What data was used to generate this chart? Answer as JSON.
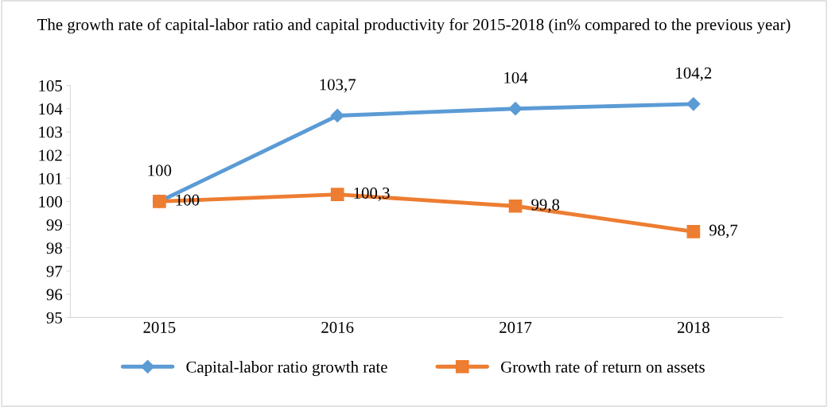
{
  "chart_data": {
    "type": "line",
    "title": "The growth rate of capital-labor ratio and capital productivity for 2015-2018 (in% compared to the previous year)",
    "categories": [
      "2015",
      "2016",
      "2017",
      "2018"
    ],
    "series": [
      {
        "name": "Capital-labor ratio growth rate",
        "color": "#5b9bd5",
        "marker": "diamond",
        "values": [
          100,
          103.7,
          104,
          104.2
        ],
        "value_labels": [
          "100",
          "103,7",
          "104",
          "104,2"
        ]
      },
      {
        "name": "Growth rate of return on assets",
        "color": "#ed7d31",
        "marker": "square",
        "values": [
          100,
          100.3,
          99.8,
          98.7
        ],
        "value_labels": [
          "100",
          "100,3",
          "99,8",
          "98,7"
        ]
      }
    ],
    "ylim": [
      95,
      105
    ],
    "yticks": [
      95,
      96,
      97,
      98,
      99,
      100,
      101,
      102,
      103,
      104,
      105
    ],
    "grid": false,
    "legend": "bottom",
    "line_style": "solid"
  }
}
